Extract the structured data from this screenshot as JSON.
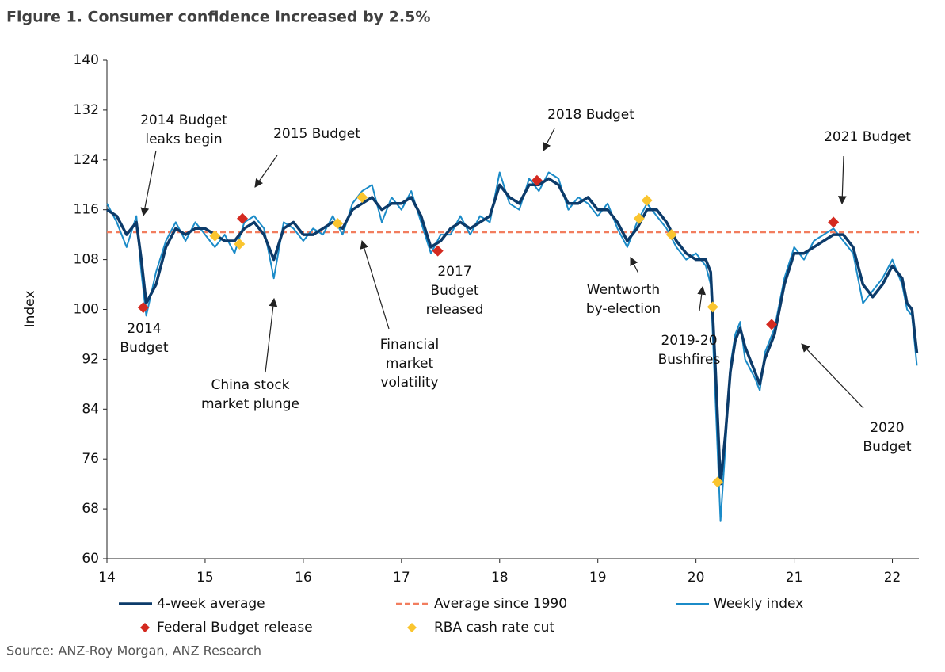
{
  "chart_data": {
    "type": "line",
    "title": "Figure 1. Consumer confidence increased by 2.5%",
    "y_label": "Index",
    "source": "Source: ANZ-Roy Morgan, ANZ Research",
    "xlim": [
      14,
      22.27
    ],
    "xticks": [
      14,
      15,
      16,
      17,
      18,
      19,
      20,
      21,
      22
    ],
    "ylim": [
      60,
      140
    ],
    "yticks": [
      60,
      68,
      76,
      84,
      92,
      100,
      108,
      116,
      124,
      132,
      140
    ],
    "x": [
      14.0,
      14.1,
      14.2,
      14.3,
      14.35,
      14.4,
      14.5,
      14.6,
      14.7,
      14.8,
      14.9,
      15.0,
      15.1,
      15.2,
      15.3,
      15.4,
      15.5,
      15.6,
      15.7,
      15.8,
      15.9,
      16.0,
      16.1,
      16.2,
      16.3,
      16.4,
      16.5,
      16.6,
      16.7,
      16.8,
      16.9,
      17.0,
      17.1,
      17.2,
      17.3,
      17.4,
      17.5,
      17.6,
      17.7,
      17.8,
      17.9,
      18.0,
      18.1,
      18.2,
      18.3,
      18.4,
      18.5,
      18.6,
      18.7,
      18.8,
      18.9,
      19.0,
      19.1,
      19.2,
      19.3,
      19.4,
      19.5,
      19.6,
      19.7,
      19.8,
      19.9,
      20.0,
      20.1,
      20.15,
      20.2,
      20.25,
      20.3,
      20.35,
      20.4,
      20.45,
      20.5,
      20.6,
      20.65,
      20.7,
      20.8,
      20.9,
      21.0,
      21.1,
      21.2,
      21.3,
      21.4,
      21.5,
      21.6,
      21.7,
      21.8,
      21.9,
      22.0,
      22.1,
      22.15,
      22.2,
      22.25
    ],
    "series": [
      {
        "name": "Weekly index",
        "color": "#1b8bc8",
        "width": 2,
        "values": [
          117,
          114,
          110,
          115,
          106,
          99,
          106,
          111,
          114,
          111,
          114,
          112,
          110,
          112,
          109,
          114,
          115,
          113,
          105,
          114,
          113,
          111,
          113,
          112,
          115,
          112,
          117,
          119,
          120,
          114,
          118,
          116,
          119,
          114,
          109,
          112,
          112,
          115,
          112,
          115,
          114,
          122,
          117,
          116,
          121,
          119,
          122,
          121,
          116,
          118,
          117,
          115,
          117,
          113,
          110,
          114,
          117,
          115,
          113,
          110,
          108,
          109,
          107,
          104,
          85,
          66,
          78,
          91,
          96,
          98,
          92,
          89,
          87,
          93,
          97,
          105,
          110,
          108,
          111,
          112,
          113,
          111,
          109,
          101,
          103,
          105,
          108,
          104,
          100,
          99,
          91
        ]
      },
      {
        "name": "4-week average",
        "color": "#0c3b6a",
        "width": 3.5,
        "values": [
          116,
          115,
          112,
          114,
          108,
          101,
          104,
          110,
          113,
          112,
          113,
          113,
          112,
          111,
          111,
          113,
          114,
          112,
          108,
          113,
          114,
          112,
          112,
          113,
          114,
          113,
          116,
          117,
          118,
          116,
          117,
          117,
          118,
          115,
          110,
          111,
          113,
          114,
          113,
          114,
          115,
          120,
          118,
          117,
          120,
          120,
          121,
          120,
          117,
          117,
          118,
          116,
          116,
          114,
          111,
          113,
          116,
          116,
          114,
          111,
          109,
          108,
          108,
          106,
          90,
          72,
          80,
          90,
          95,
          97,
          94,
          90,
          88,
          92,
          96,
          104,
          109,
          109,
          110,
          111,
          112,
          112,
          110,
          104,
          102,
          104,
          107,
          105,
          101,
          100,
          93
        ]
      }
    ],
    "reference_lines": [
      {
        "name": "Average since 1990",
        "color": "#f27d5e",
        "value": 112.4
      }
    ],
    "markers": [
      {
        "name": "Federal Budget release",
        "color": "#d42a20",
        "x": [
          14.37,
          15.38,
          17.37,
          18.38,
          20.77,
          21.4
        ],
        "values": [
          100.3,
          114.6,
          109.4,
          120.7,
          97.6,
          114
        ]
      },
      {
        "name": "RBA cash rate cut",
        "color": "#fac52f",
        "x": [
          15.1,
          15.35,
          16.35,
          16.6,
          19.42,
          19.5,
          19.75,
          20.17,
          20.22
        ],
        "values": [
          111.8,
          110.5,
          113.8,
          118,
          114.6,
          117.5,
          112,
          100.4,
          72.3
        ]
      }
    ],
    "annotations": [
      {
        "lines": [
          "2014 Budget",
          "leaks begin"
        ]
      },
      {
        "lines": [
          "2015 Budget"
        ]
      },
      {
        "lines": [
          "2014",
          "Budget"
        ]
      },
      {
        "lines": [
          "China stock",
          "market plunge"
        ]
      },
      {
        "lines": [
          "Financial",
          "market",
          "volatility"
        ]
      },
      {
        "lines": [
          "2017",
          "Budget",
          "released"
        ]
      },
      {
        "lines": [
          "2018 Budget"
        ]
      },
      {
        "lines": [
          "Wentworth",
          "by-election"
        ]
      },
      {
        "lines": [
          "2019-20",
          "Bushfires"
        ]
      },
      {
        "lines": [
          "2021 Budget"
        ]
      },
      {
        "lines": [
          "2020",
          "Budget"
        ]
      }
    ]
  }
}
